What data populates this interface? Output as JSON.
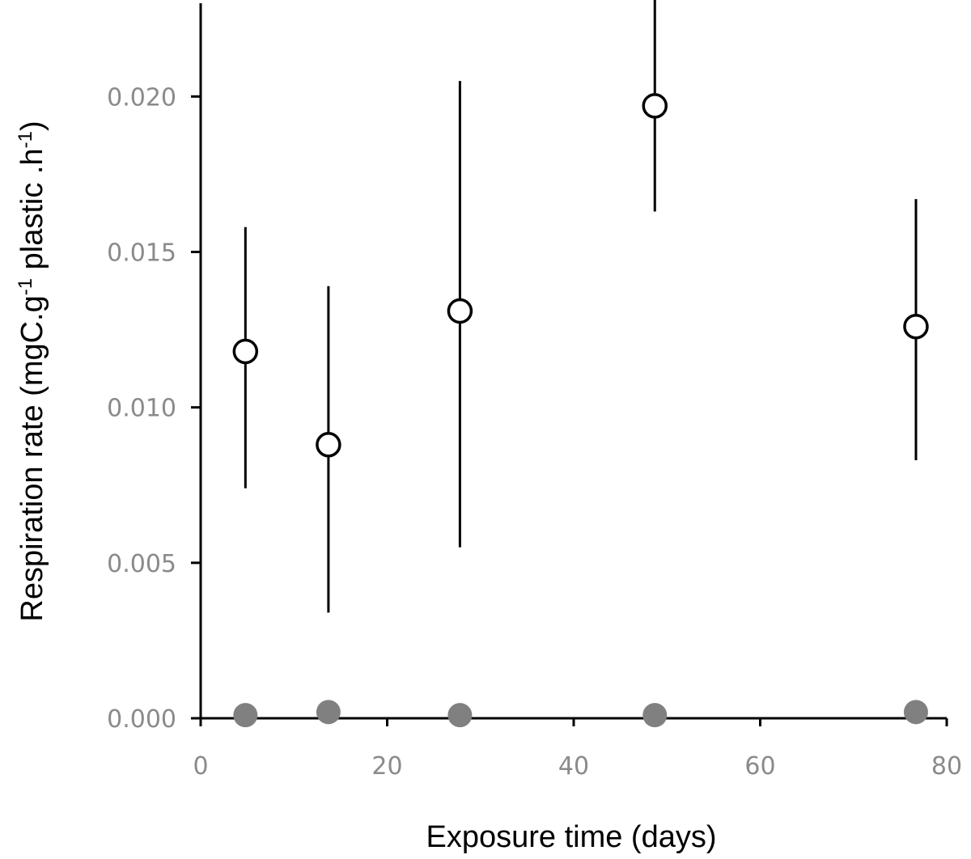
{
  "chart_data": {
    "type": "scatter",
    "xlabel": "Exposure time (days)",
    "ylabel": {
      "parts": [
        {
          "text": "Respiration rate (mgC.g",
          "sup": false
        },
        {
          "text": "-1",
          "sup": true
        },
        {
          "text": " plastic .h",
          "sup": false
        },
        {
          "text": "-1",
          "sup": true
        },
        {
          "text": ")",
          "sup": false
        }
      ]
    },
    "xlim": [
      0,
      80
    ],
    "ylim": [
      0,
      0.023
    ],
    "x_ticks": [
      0,
      20,
      40,
      60,
      80
    ],
    "x_tick_labels": [
      "0",
      "20",
      "40",
      "60",
      "80"
    ],
    "y_ticks": [
      0,
      0.005,
      0.01,
      0.015,
      0.02
    ],
    "y_tick_labels": [
      "0.000",
      "0.005",
      "0.010",
      "0.015",
      "0.020"
    ],
    "grid": false,
    "series": [
      {
        "marker": "open-circle",
        "color": "#000000",
        "points": [
          {
            "x": 4.8,
            "y": 0.0118,
            "err_low": 0.0074,
            "err_high": 0.0158
          },
          {
            "x": 13.7,
            "y": 0.0088,
            "err_low": 0.0034,
            "err_high": 0.0139
          },
          {
            "x": 27.8,
            "y": 0.0131,
            "err_low": 0.0055,
            "err_high": 0.0205
          },
          {
            "x": 48.7,
            "y": 0.0197,
            "err_low": 0.0163,
            "err_high": 0.0235
          },
          {
            "x": 76.7,
            "y": 0.0126,
            "err_low": 0.0083,
            "err_high": 0.0167
          }
        ]
      },
      {
        "marker": "filled-circle",
        "color": "#808080",
        "points": [
          {
            "x": 4.8,
            "y": 0.0001
          },
          {
            "x": 13.7,
            "y": 0.0002
          },
          {
            "x": 27.8,
            "y": 0.0001
          },
          {
            "x": 48.7,
            "y": 0.0001
          },
          {
            "x": 76.7,
            "y": 0.0002
          }
        ]
      }
    ]
  }
}
